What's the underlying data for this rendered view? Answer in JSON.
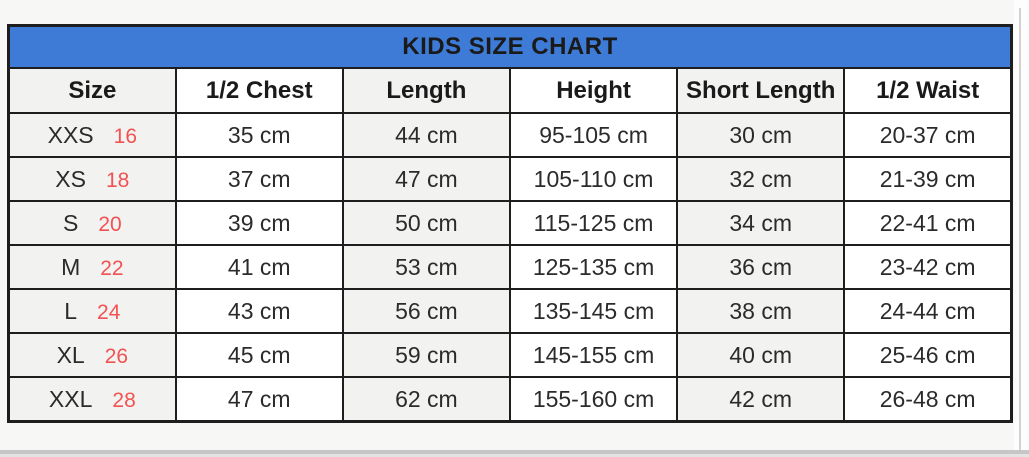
{
  "colors": {
    "title_bar_blue": "#3d7bd7",
    "size_number_red": "#f25252",
    "cell_gray": "#f2f2f1",
    "cell_white": "#ffffff",
    "border_black": "#1e1e1e",
    "page_background": "#f7f7f6"
  },
  "chart_data": {
    "type": "table",
    "title": "KIDS SIZE CHART",
    "columns": [
      "Size",
      "1/2 Chest",
      "Length",
      "Height",
      "Short Length",
      "1/2 Waist"
    ],
    "rows": [
      {
        "size": "XXS",
        "size_num": "16",
        "half_chest": "35 cm",
        "length": "44 cm",
        "height": "95-105 cm",
        "short_length": "30 cm",
        "half_waist": "20-37 cm"
      },
      {
        "size": "XS",
        "size_num": "18",
        "half_chest": "37 cm",
        "length": "47 cm",
        "height": "105-110 cm",
        "short_length": "32 cm",
        "half_waist": "21-39 cm"
      },
      {
        "size": "S",
        "size_num": "20",
        "half_chest": "39 cm",
        "length": "50 cm",
        "height": "115-125 cm",
        "short_length": "34 cm",
        "half_waist": "22-41 cm"
      },
      {
        "size": "M",
        "size_num": "22",
        "half_chest": "41 cm",
        "length": "53 cm",
        "height": "125-135 cm",
        "short_length": "36 cm",
        "half_waist": "23-42 cm"
      },
      {
        "size": "L",
        "size_num": "24",
        "half_chest": "43 cm",
        "length": "56 cm",
        "height": "135-145 cm",
        "short_length": "38 cm",
        "half_waist": "24-44 cm"
      },
      {
        "size": "XL",
        "size_num": "26",
        "half_chest": "45 cm",
        "length": "59 cm",
        "height": "145-155 cm",
        "short_length": "40 cm",
        "half_waist": "25-46 cm"
      },
      {
        "size": "XXL",
        "size_num": "28",
        "half_chest": "47 cm",
        "length": "62 cm",
        "height": "155-160 cm",
        "short_length": "42 cm",
        "half_waist": "26-48 cm"
      }
    ]
  }
}
